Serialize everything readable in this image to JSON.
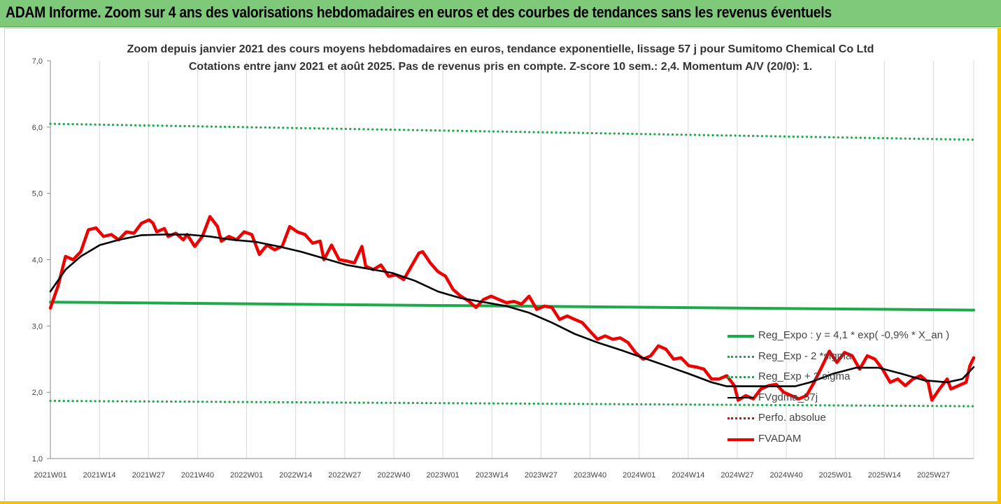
{
  "header": {
    "title": "ADAM Informe. Zoom sur 4 ans des valorisations hebdomadaires en euros et des courbes de tendances sans les revenus éventuels"
  },
  "colors": {
    "header_bg": "#7fc97a",
    "reg_expo": "#1faa4a",
    "fvgdma": "#000000",
    "fvadam": "#ee0000",
    "perfo": "#ee0000",
    "frame_edge": "#f2c400"
  },
  "chart_data": {
    "type": "line",
    "title": "Zoom depuis janvier 2021 des cours moyens hebdomadaires en euros, tendance exponentielle, lissage 57 j pour Sumitomo Chemical Co Ltd",
    "subtitle": "Cotations entre janv 2021 et août 2025.  Pas de revenus pris en compte. Z-score 10 sem.: 2,4. Momentum A/V (20/0): 1.",
    "xlabel": "",
    "ylabel": "",
    "ylim": [
      1.0,
      7.0
    ],
    "y_ticks": [
      "1,0",
      "2,0",
      "3,0",
      "4,0",
      "5,0",
      "6,0",
      "7,0"
    ],
    "x_ticks": [
      "2021W01",
      "2021W14",
      "2021W27",
      "2021W40",
      "2022W01",
      "2022W14",
      "2022W27",
      "2022W40",
      "2023W01",
      "2023W14",
      "2023W27",
      "2023W40",
      "2024W01",
      "2024W14",
      "2024W27",
      "2024W40",
      "2025W01",
      "2025W14",
      "2025W27"
    ],
    "x_range_weeks": [
      0,
      243
    ],
    "grid": "vertical",
    "legend_position": "bottom-right",
    "series": [
      {
        "name": "Reg_Expo : y = 4,1 * exp( -0,9% *  X_an )",
        "style": "solid-thick",
        "color": "#1faa4a",
        "points": [
          [
            0,
            3.36
          ],
          [
            243,
            3.24
          ]
        ]
      },
      {
        "name": "Reg_Exp - 2 *sigma",
        "style": "dotted",
        "color": "#1faa4a",
        "points": [
          [
            0,
            1.87
          ],
          [
            243,
            1.79
          ]
        ]
      },
      {
        "name": "Reg_Exp + 2 sigma",
        "style": "dotted",
        "color": "#1faa4a",
        "points": [
          [
            0,
            6.05
          ],
          [
            243,
            5.81
          ]
        ]
      },
      {
        "name": "FVgdma_57j",
        "style": "solid",
        "color": "#000000",
        "points": [
          [
            0,
            3.52
          ],
          [
            4,
            3.85
          ],
          [
            8,
            4.05
          ],
          [
            13,
            4.22
          ],
          [
            18,
            4.3
          ],
          [
            24,
            4.37
          ],
          [
            30,
            4.38
          ],
          [
            36,
            4.38
          ],
          [
            42,
            4.35
          ],
          [
            48,
            4.3
          ],
          [
            54,
            4.27
          ],
          [
            60,
            4.2
          ],
          [
            66,
            4.12
          ],
          [
            72,
            4.02
          ],
          [
            78,
            3.92
          ],
          [
            84,
            3.86
          ],
          [
            90,
            3.8
          ],
          [
            96,
            3.68
          ],
          [
            102,
            3.52
          ],
          [
            108,
            3.42
          ],
          [
            114,
            3.36
          ],
          [
            120,
            3.3
          ],
          [
            126,
            3.2
          ],
          [
            132,
            3.05
          ],
          [
            138,
            2.88
          ],
          [
            144,
            2.75
          ],
          [
            150,
            2.64
          ],
          [
            156,
            2.52
          ],
          [
            162,
            2.4
          ],
          [
            168,
            2.28
          ],
          [
            174,
            2.15
          ],
          [
            178,
            2.09
          ],
          [
            184,
            2.09
          ],
          [
            190,
            2.09
          ],
          [
            196,
            2.09
          ],
          [
            200,
            2.15
          ],
          [
            206,
            2.28
          ],
          [
            212,
            2.37
          ],
          [
            218,
            2.37
          ],
          [
            224,
            2.28
          ],
          [
            230,
            2.18
          ],
          [
            236,
            2.15
          ],
          [
            240,
            2.2
          ],
          [
            243,
            2.38
          ]
        ]
      },
      {
        "name": "Perfo. absolue",
        "style": "dotted",
        "color": "#ee0000",
        "points": []
      },
      {
        "name": "FVADAM",
        "style": "solid-thick",
        "color": "#ee0000",
        "points": [
          [
            0,
            3.27
          ],
          [
            2,
            3.6
          ],
          [
            4,
            4.05
          ],
          [
            6,
            4.0
          ],
          [
            8,
            4.12
          ],
          [
            10,
            4.45
          ],
          [
            12,
            4.48
          ],
          [
            14,
            4.35
          ],
          [
            16,
            4.38
          ],
          [
            18,
            4.3
          ],
          [
            20,
            4.42
          ],
          [
            22,
            4.4
          ],
          [
            24,
            4.55
          ],
          [
            26,
            4.6
          ],
          [
            27,
            4.55
          ],
          [
            28,
            4.42
          ],
          [
            30,
            4.47
          ],
          [
            31,
            4.35
          ],
          [
            33,
            4.4
          ],
          [
            35,
            4.3
          ],
          [
            36,
            4.38
          ],
          [
            38,
            4.2
          ],
          [
            40,
            4.35
          ],
          [
            42,
            4.65
          ],
          [
            44,
            4.5
          ],
          [
            45,
            4.28
          ],
          [
            47,
            4.35
          ],
          [
            49,
            4.3
          ],
          [
            51,
            4.42
          ],
          [
            53,
            4.38
          ],
          [
            55,
            4.08
          ],
          [
            57,
            4.22
          ],
          [
            59,
            4.15
          ],
          [
            61,
            4.2
          ],
          [
            63,
            4.5
          ],
          [
            65,
            4.42
          ],
          [
            67,
            4.38
          ],
          [
            69,
            4.25
          ],
          [
            71,
            4.28
          ],
          [
            72,
            4.0
          ],
          [
            74,
            4.22
          ],
          [
            76,
            4.0
          ],
          [
            78,
            3.98
          ],
          [
            80,
            3.95
          ],
          [
            82,
            4.2
          ],
          [
            83,
            3.9
          ],
          [
            85,
            3.85
          ],
          [
            87,
            3.92
          ],
          [
            89,
            3.75
          ],
          [
            91,
            3.77
          ],
          [
            93,
            3.7
          ],
          [
            95,
            3.9
          ],
          [
            97,
            4.1
          ],
          [
            98,
            4.12
          ],
          [
            100,
            3.95
          ],
          [
            102,
            3.82
          ],
          [
            104,
            3.75
          ],
          [
            106,
            3.55
          ],
          [
            108,
            3.45
          ],
          [
            110,
            3.38
          ],
          [
            112,
            3.28
          ],
          [
            114,
            3.4
          ],
          [
            116,
            3.45
          ],
          [
            118,
            3.4
          ],
          [
            120,
            3.35
          ],
          [
            122,
            3.37
          ],
          [
            124,
            3.33
          ],
          [
            126,
            3.45
          ],
          [
            128,
            3.25
          ],
          [
            130,
            3.3
          ],
          [
            132,
            3.28
          ],
          [
            134,
            3.1
          ],
          [
            136,
            3.15
          ],
          [
            138,
            3.1
          ],
          [
            140,
            3.05
          ],
          [
            142,
            2.92
          ],
          [
            144,
            2.8
          ],
          [
            146,
            2.85
          ],
          [
            148,
            2.8
          ],
          [
            150,
            2.82
          ],
          [
            152,
            2.75
          ],
          [
            154,
            2.6
          ],
          [
            156,
            2.5
          ],
          [
            158,
            2.55
          ],
          [
            160,
            2.7
          ],
          [
            162,
            2.65
          ],
          [
            164,
            2.5
          ],
          [
            166,
            2.52
          ],
          [
            168,
            2.4
          ],
          [
            170,
            2.38
          ],
          [
            172,
            2.35
          ],
          [
            174,
            2.2
          ],
          [
            176,
            2.2
          ],
          [
            178,
            2.25
          ],
          [
            180,
            2.1
          ],
          [
            181,
            1.88
          ],
          [
            183,
            1.95
          ],
          [
            185,
            1.9
          ],
          [
            187,
            2.05
          ],
          [
            189,
            2.1
          ],
          [
            191,
            2.12
          ],
          [
            193,
            2.0
          ],
          [
            195,
            1.95
          ],
          [
            197,
            1.9
          ],
          [
            199,
            1.95
          ],
          [
            201,
            2.15
          ],
          [
            203,
            2.38
          ],
          [
            205,
            2.62
          ],
          [
            207,
            2.45
          ],
          [
            209,
            2.6
          ],
          [
            211,
            2.55
          ],
          [
            213,
            2.35
          ],
          [
            215,
            2.55
          ],
          [
            217,
            2.5
          ],
          [
            219,
            2.35
          ],
          [
            221,
            2.15
          ],
          [
            223,
            2.2
          ],
          [
            225,
            2.1
          ],
          [
            227,
            2.2
          ],
          [
            229,
            2.25
          ],
          [
            231,
            2.15
          ],
          [
            232,
            1.88
          ],
          [
            234,
            2.05
          ],
          [
            236,
            2.2
          ],
          [
            237,
            2.05
          ],
          [
            239,
            2.1
          ],
          [
            241,
            2.15
          ],
          [
            242,
            2.4
          ],
          [
            243,
            2.52
          ]
        ]
      }
    ]
  }
}
